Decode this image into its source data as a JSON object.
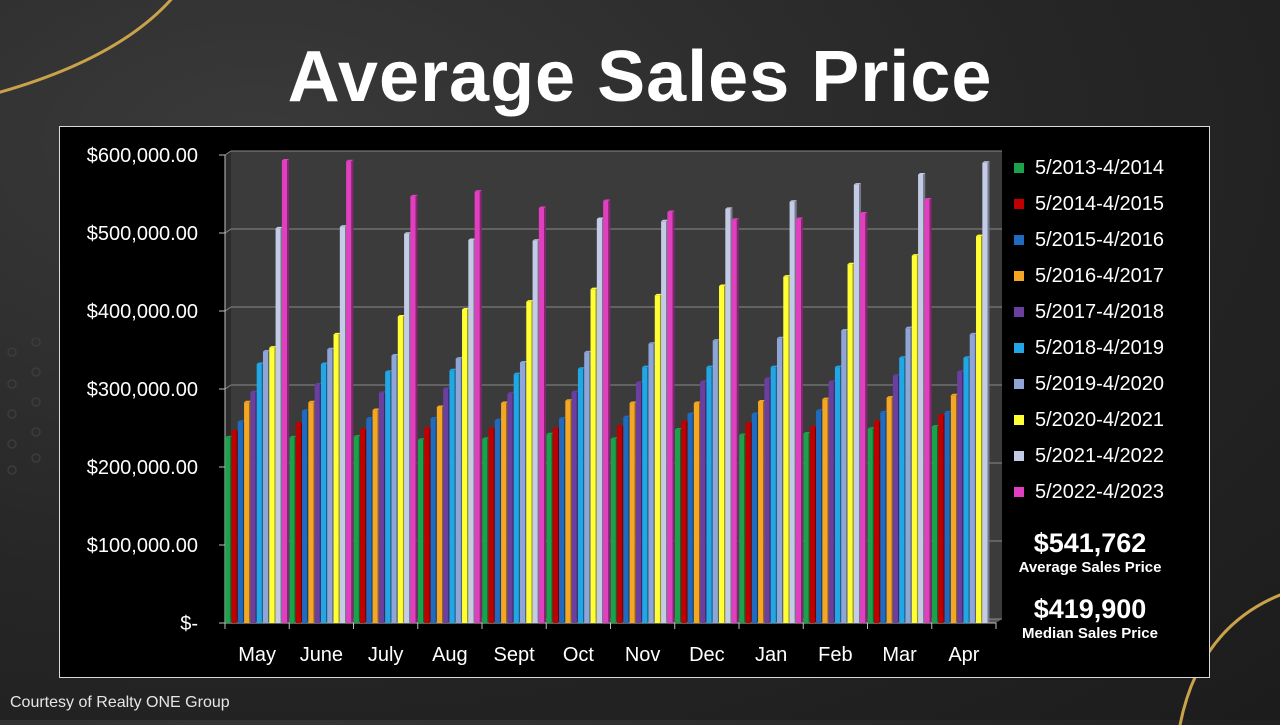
{
  "title": "Average Sales Price",
  "footer": "Courtesy of Realty ONE Group",
  "stats": {
    "average_value": "$541,762",
    "average_label": "Average  Sales Price",
    "median_value": "$419,900",
    "median_label": "Median  Sales Price"
  },
  "chart_data": {
    "type": "bar",
    "style": "3d clustered column",
    "categories": [
      "May",
      "June",
      "July",
      "Aug",
      "Sept",
      "Oct",
      "Nov",
      "Dec",
      "Jan",
      "Feb",
      "Mar",
      "Apr"
    ],
    "ylim": [
      0,
      600000
    ],
    "yticks": [
      0,
      100000,
      200000,
      300000,
      400000,
      500000,
      600000
    ],
    "ytick_labels": [
      "$-",
      "$100,000.00",
      "$200,000.00",
      "$300,000.00",
      "$400,000.00",
      "$500,000.00",
      "$600,000.00"
    ],
    "grid": true,
    "legend_position": "right",
    "series": [
      {
        "name": "5/2013-4/2014",
        "color": "#1aa34a",
        "values": [
          238000,
          238000,
          239000,
          235000,
          236000,
          242000,
          236000,
          248000,
          241000,
          243000,
          249000,
          252000
        ]
      },
      {
        "name": "5/2014-4/2015",
        "color": "#c00000",
        "values": [
          246000,
          256000,
          248000,
          250000,
          249000,
          249000,
          252000,
          258000,
          256000,
          251000,
          258000,
          266000
        ]
      },
      {
        "name": "5/2015-4/2016",
        "color": "#1f6bbf",
        "values": [
          258000,
          272000,
          262000,
          262000,
          260000,
          262000,
          264000,
          268000,
          268000,
          272000,
          270000,
          270000
        ]
      },
      {
        "name": "5/2016-4/2017",
        "color": "#f5a623",
        "values": [
          283000,
          283000,
          273000,
          277000,
          282000,
          285000,
          282000,
          282000,
          284000,
          287000,
          289000,
          292000
        ]
      },
      {
        "name": "5/2017-4/2018",
        "color": "#6a3fa0",
        "values": [
          296000,
          306000,
          295000,
          300000,
          294000,
          296000,
          308000,
          309000,
          313000,
          309000,
          317000,
          322000
        ]
      },
      {
        "name": "5/2018-4/2019",
        "color": "#22a7e6",
        "values": [
          332000,
          332000,
          322000,
          324000,
          319000,
          326000,
          328000,
          328000,
          328000,
          328000,
          340000,
          340000
        ]
      },
      {
        "name": "5/2019-4/2020",
        "color": "#8fa5d8",
        "values": [
          348000,
          351000,
          343000,
          339000,
          334000,
          347000,
          358000,
          362000,
          365000,
          375000,
          378000,
          370000
        ]
      },
      {
        "name": "5/2020-4/2021",
        "color": "#ffff33",
        "values": [
          353000,
          370000,
          393000,
          402000,
          412000,
          428000,
          420000,
          432000,
          444000,
          460000,
          471000,
          496000
        ]
      },
      {
        "name": "5/2021-4/2022",
        "color": "#c3cbe6",
        "values": [
          506000,
          508000,
          499000,
          491000,
          490000,
          518000,
          515000,
          531000,
          540000,
          562000,
          575000,
          590000
        ]
      },
      {
        "name": "5/2022-4/2023",
        "color": "#e040c0",
        "values": [
          593000,
          592000,
          547000,
          553000,
          532000,
          541000,
          527000,
          517000,
          518000,
          525000,
          543000,
          null
        ]
      }
    ]
  }
}
